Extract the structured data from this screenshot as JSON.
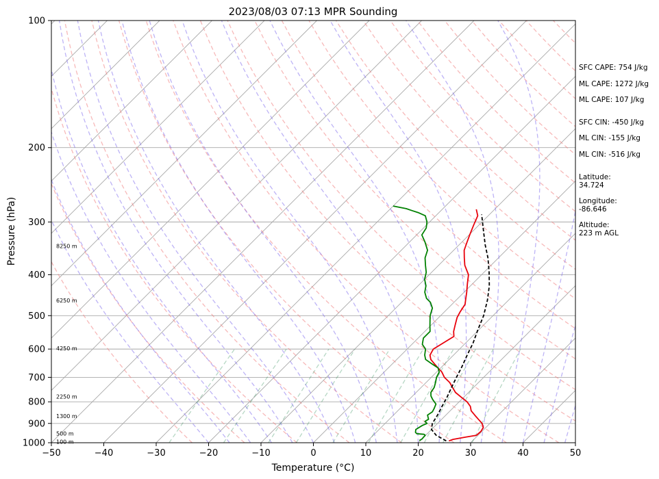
{
  "chart_data": {
    "type": "line",
    "subtype": "skew-t log-p sounding",
    "title": "2023/08/03 07:13 MPR Sounding",
    "xlabel": "Temperature (°C)",
    "ylabel": "Pressure (hPa)",
    "xlim": [
      -50,
      50
    ],
    "ylim": [
      1000,
      100
    ],
    "yscale": "log",
    "grid": true,
    "xticks": [
      "−50",
      "−40",
      "−30",
      "−20",
      "−10",
      "0",
      "10",
      "20",
      "30",
      "40",
      "50"
    ],
    "yticks": [
      "100",
      "200",
      "300",
      "400",
      "500",
      "600",
      "700",
      "800",
      "900",
      "1000"
    ],
    "height_labels": [
      {
        "p": 994,
        "text": "100 m"
      },
      {
        "p": 950,
        "text": "500 m"
      },
      {
        "p": 865,
        "text": "1300 m"
      },
      {
        "p": 778,
        "text": "2250 m"
      },
      {
        "p": 597,
        "text": "4250 m"
      },
      {
        "p": 460,
        "text": "6250 m"
      },
      {
        "p": 342,
        "text": "8250 m"
      }
    ],
    "series": [
      {
        "key": "temperature",
        "color": "#e8000b",
        "points": [
          [
            25.5,
            990
          ],
          [
            26.0,
            982
          ],
          [
            28.0,
            970
          ],
          [
            29.7,
            960
          ],
          [
            29.8,
            940
          ],
          [
            29.5,
            920
          ],
          [
            28.5,
            900
          ],
          [
            27,
            880
          ],
          [
            25.5,
            860
          ],
          [
            24,
            840
          ],
          [
            23,
            820
          ],
          [
            21.5,
            800
          ],
          [
            19.5,
            780
          ],
          [
            17.5,
            760
          ],
          [
            16,
            740
          ],
          [
            14.5,
            720
          ],
          [
            12.5,
            700
          ],
          [
            11,
            680
          ],
          [
            9.5,
            665
          ],
          [
            8,
            650
          ],
          [
            6.5,
            635
          ],
          [
            5.5,
            620
          ],
          [
            5.0,
            600
          ],
          [
            6.5,
            560
          ],
          [
            5.5,
            545
          ],
          [
            4.5,
            525
          ],
          [
            3.5,
            505
          ],
          [
            3.0,
            490
          ],
          [
            2.5,
            470
          ],
          [
            1.5,
            455
          ],
          [
            0.5,
            440
          ],
          [
            -1.0,
            420
          ],
          [
            -2.5,
            400
          ],
          [
            -5.0,
            380
          ],
          [
            -6.5,
            365
          ],
          [
            -8.0,
            350
          ],
          [
            -9.0,
            335
          ],
          [
            -10.0,
            320
          ],
          [
            -11.0,
            305
          ],
          [
            -12.0,
            290
          ],
          [
            -13.5,
            280
          ]
        ]
      },
      {
        "key": "dewpoint",
        "color": "#008000",
        "points": [
          [
            19.8,
            988
          ],
          [
            20,
            980
          ],
          [
            19.9,
            960
          ],
          [
            19.5,
            955
          ],
          [
            18,
            952
          ],
          [
            17.5,
            945
          ],
          [
            17.0,
            930
          ],
          [
            17.5,
            910
          ],
          [
            18,
            900
          ],
          [
            17.2,
            890
          ],
          [
            17.5,
            880
          ],
          [
            16.5,
            860
          ],
          [
            16.8,
            845
          ],
          [
            16.5,
            830
          ],
          [
            16.0,
            810
          ],
          [
            14.5,
            790
          ],
          [
            13.5,
            775
          ],
          [
            12.8,
            760
          ],
          [
            12.5,
            740
          ],
          [
            11.8,
            720
          ],
          [
            11.0,
            700
          ],
          [
            10.5,
            680
          ],
          [
            9.5,
            665
          ],
          [
            7.5,
            650
          ],
          [
            5.5,
            635
          ],
          [
            4.5,
            620
          ],
          [
            3.5,
            600
          ],
          [
            2.0,
            585
          ],
          [
            1.0,
            565
          ],
          [
            1.0,
            545
          ],
          [
            0.0,
            530
          ],
          [
            -1.0,
            515
          ],
          [
            -2.0,
            500
          ],
          [
            -3.0,
            480
          ],
          [
            -4.5,
            465
          ],
          [
            -6.0,
            455
          ],
          [
            -7.5,
            440
          ],
          [
            -8.5,
            425
          ],
          [
            -10.0,
            410
          ],
          [
            -11.0,
            395
          ],
          [
            -12.5,
            380
          ],
          [
            -14.0,
            365
          ],
          [
            -15.0,
            350
          ],
          [
            -17.0,
            335
          ],
          [
            -19.0,
            322
          ],
          [
            -19.5,
            310
          ],
          [
            -20.5,
            300
          ],
          [
            -22.0,
            290
          ],
          [
            -24.0,
            285
          ],
          [
            -25.5,
            282
          ],
          [
            -27.0,
            279
          ],
          [
            -30.0,
            275
          ]
        ]
      },
      {
        "key": "parcel",
        "color": "#000000",
        "dashed": true,
        "points": [
          [
            25.0,
            990
          ],
          [
            22.0,
            960
          ],
          [
            20.0,
            930
          ],
          [
            19.0,
            900
          ],
          [
            18.4,
            860
          ],
          [
            17.6,
            820
          ],
          [
            16.8,
            780
          ],
          [
            15.8,
            740
          ],
          [
            14.8,
            700
          ],
          [
            13.8,
            660
          ],
          [
            12.6,
            620
          ],
          [
            11.4,
            580
          ],
          [
            9.8,
            540
          ],
          [
            8.2,
            500
          ],
          [
            6.0,
            460
          ],
          [
            3.6,
            425
          ],
          [
            1.0,
            395
          ],
          [
            -2.0,
            365
          ],
          [
            -5.0,
            340
          ],
          [
            -8.0,
            315
          ],
          [
            -11.5,
            288
          ]
        ]
      }
    ]
  },
  "stats": [
    {
      "text": "SFC CAPE: 754 J/kg"
    },
    {
      "text": "ML CAPE: 1272 J/kg"
    },
    {
      "text": "ML CAPE: 107 J/kg"
    },
    {
      "text": "SFC CIN: -450 J/kg"
    },
    {
      "text": "ML CIN: -155 J/kg"
    },
    {
      "text": "ML CIN: -516 J/kg"
    },
    {
      "label": "Latitude:",
      "value": "34.724"
    },
    {
      "label": "Longitude:",
      "value": "-86.646"
    },
    {
      "label": "Altitude:",
      "value": "223 m AGL"
    }
  ]
}
